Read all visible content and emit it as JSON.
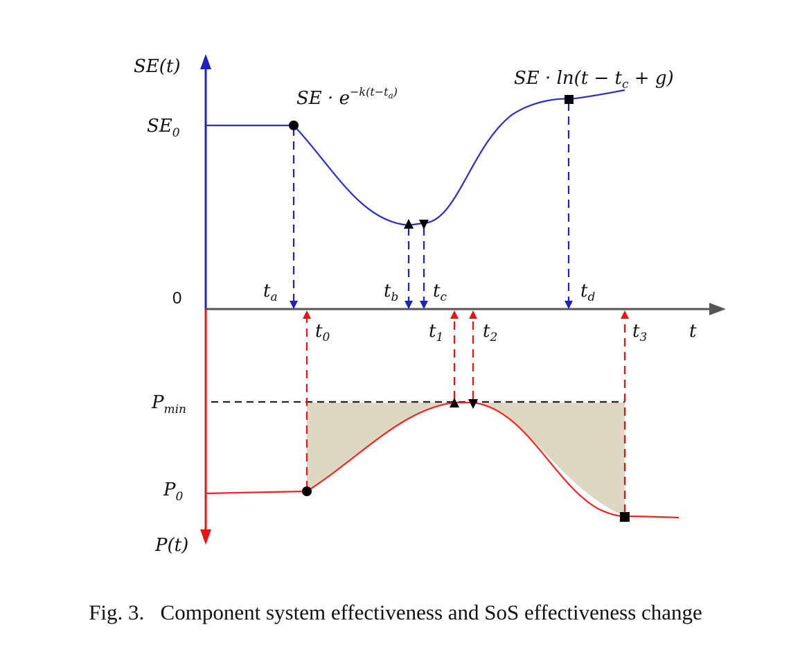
{
  "caption": "Fig. 3.   Component system effectiveness and SoS effectiveness change",
  "axes": {
    "se_axis": {
      "name": "SE",
      "arg": "(t)"
    },
    "p_axis": {
      "name": "P",
      "arg": "(t)"
    },
    "time_axis": "t",
    "origin": "0"
  },
  "levels": {
    "se0": {
      "base": "SE",
      "sub": "0"
    },
    "pmin": {
      "base": "P",
      "sub": "min"
    },
    "p0": {
      "base": "P",
      "sub": "0"
    }
  },
  "formulas": {
    "decay": {
      "prefix": "SE · e",
      "exponent": "−k(t−t",
      "exp_sub": "a",
      "exp_close": ")"
    },
    "recovery": {
      "prefix": "SE · ln(t − t",
      "sub": "c",
      "suffix": " + g)"
    }
  },
  "time_marks_top": [
    {
      "base": "t",
      "sub": "a"
    },
    {
      "base": "t",
      "sub": "b"
    },
    {
      "base": "t",
      "sub": "c"
    },
    {
      "base": "t",
      "sub": "d"
    }
  ],
  "time_marks_bottom": [
    {
      "base": "t",
      "sub": "0"
    },
    {
      "base": "t",
      "sub": "1"
    },
    {
      "base": "t",
      "sub": "2"
    },
    {
      "base": "t",
      "sub": "3"
    }
  ],
  "colors": {
    "se_curve": "#2b2bd0",
    "p_curve": "#ff2020",
    "se_axis": "#2020c0",
    "p_axis": "#ee1111",
    "time_axis": "#555555",
    "shade": "#ddd8c4",
    "dashed_black": "#222222"
  }
}
